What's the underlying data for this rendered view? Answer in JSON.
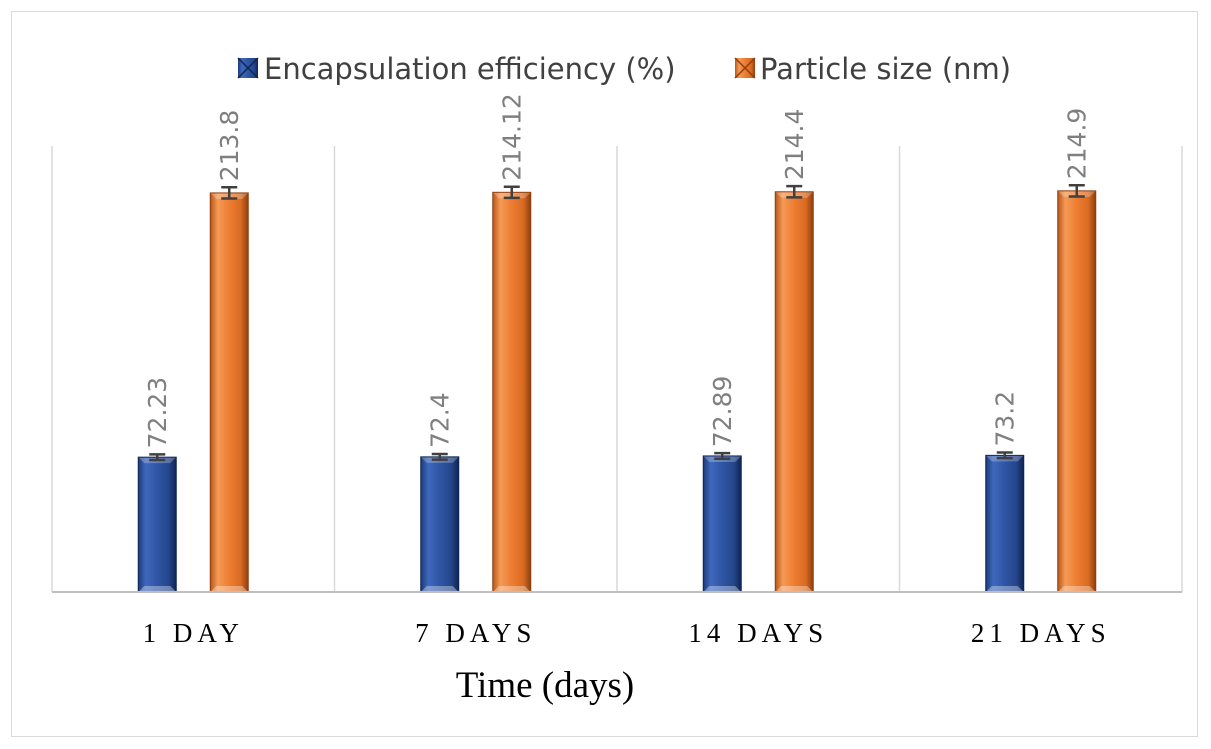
{
  "chart_data": {
    "type": "bar",
    "categories": [
      "1 DAY",
      "7 DAYS",
      "14 DAYS",
      "21 DAYS"
    ],
    "series": [
      {
        "name": "Encapsulation efficiency (%)",
        "values": [
          72.23,
          72.4,
          72.89,
          73.2
        ],
        "data_labels": [
          "72.23",
          "72.4",
          "72.89",
          "73.2"
        ],
        "error": [
          1.5,
          1.5,
          1.5,
          1.5
        ],
        "color": "#2f55a4"
      },
      {
        "name": "Particle size (nm)",
        "values": [
          213.8,
          214.12,
          214.4,
          214.9
        ],
        "data_labels": [
          "213.8",
          "214.12",
          "214.4",
          "214.9"
        ],
        "error": [
          3,
          3,
          3,
          3
        ],
        "color": "#ed7d31"
      }
    ],
    "title": "",
    "xlabel": "Time (days)",
    "ylabel": "",
    "ylim": [
      0,
      270
    ],
    "grid": "vertical-category-separators",
    "legend_position": "top"
  }
}
